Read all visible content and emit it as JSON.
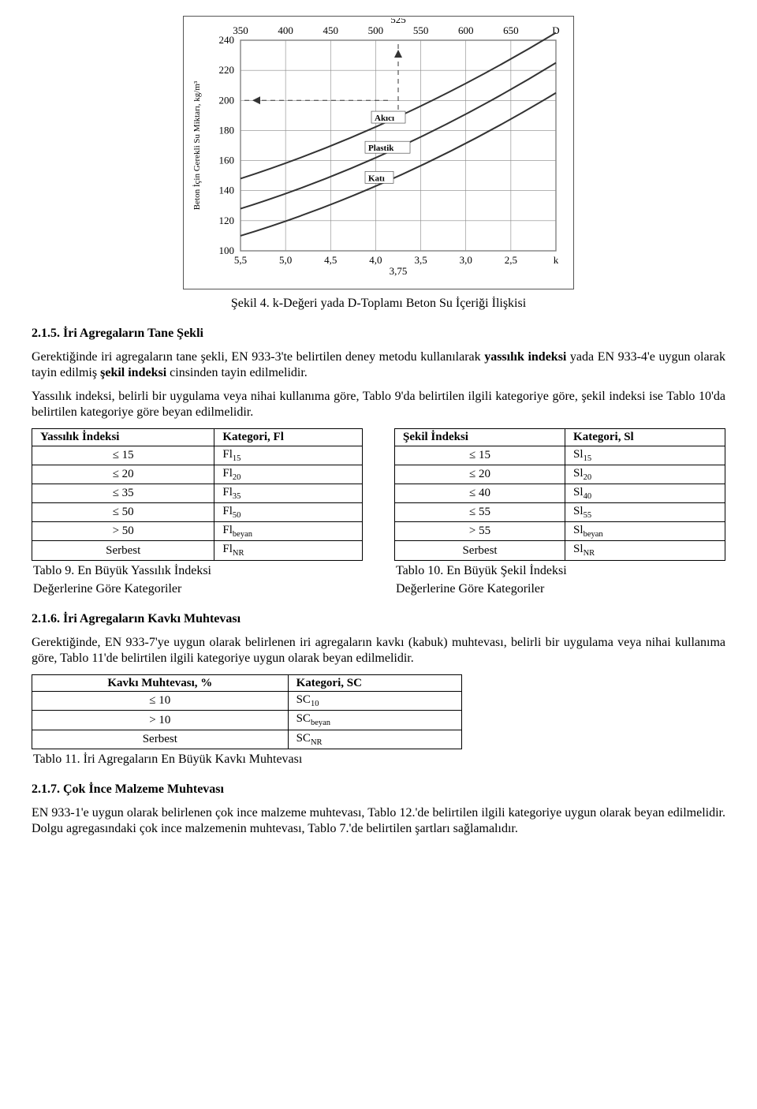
{
  "chart": {
    "top_ticks": [
      "350",
      "400",
      "450",
      "500",
      "550",
      "600",
      "650",
      "D"
    ],
    "top_mid": "525",
    "y_ticks": [
      "240",
      "220",
      "200",
      "180",
      "160",
      "140",
      "120",
      "100"
    ],
    "bottom_ticks": [
      "5,5",
      "5,0",
      "4,5",
      "4,0",
      "3,5",
      "3,0",
      "2,5",
      "k"
    ],
    "bottom_mid": "3,75",
    "y_label": "Beton İçin Gerekli Su Miktarı, kg/m³",
    "labels": {
      "akici": "Akıcı",
      "plastik": "Plastik",
      "kati": "Katı"
    },
    "colors": {
      "border": "#555",
      "grid": "#888",
      "curve": "#333",
      "text": "#000",
      "bg": "#ffffff"
    }
  },
  "sekil4_caption": "Şekil 4. k-Değeri yada D-Toplamı Beton Su İçeriği İlişkisi",
  "h215": "2.1.5. İri Agregaların Tane Şekli",
  "p215a": "Gerektiğinde iri agregaların tane şekli, EN 933-3'te belirtilen deney metodu kullanılarak yassılık indeksi yada EN 933-4'e uygun olarak tayin edilmiş şekil indeksi cinsinden tayin edilmelidir.",
  "p215b": "Yassılık indeksi, belirli bir uygulama veya nihai kullanıma göre, Tablo 9'da belirtilen ilgili kategoriye göre, şekil indeksi ise Tablo 10'da belirtilen kategoriye göre beyan edilmelidir.",
  "t9": {
    "h1": "Yassılık İndeksi",
    "h2": "Kategori, Fl",
    "rows": [
      {
        "a": "≤ 15",
        "b": "Fl",
        "s": "15"
      },
      {
        "a": "≤ 20",
        "b": "Fl",
        "s": "20"
      },
      {
        "a": "≤ 35",
        "b": "Fl",
        "s": "35"
      },
      {
        "a": "≤ 50",
        "b": "Fl",
        "s": "50"
      },
      {
        "a": "> 50",
        "b": "Fl",
        "s": "beyan"
      },
      {
        "a": "Serbest",
        "b": "Fl",
        "s": "NR"
      }
    ],
    "caption_l1": "Tablo 9. En Büyük Yassılık İndeksi",
    "caption_l2": "Değerlerine Göre Kategoriler"
  },
  "t10": {
    "h1": "Şekil İndeksi",
    "h2": "Kategori, Sl",
    "rows": [
      {
        "a": "≤ 15",
        "b": "Sl",
        "s": "15"
      },
      {
        "a": "≤ 20",
        "b": "Sl",
        "s": "20"
      },
      {
        "a": "≤ 40",
        "b": "Sl",
        "s": "40"
      },
      {
        "a": "≤ 55",
        "b": "Sl",
        "s": "55"
      },
      {
        "a": "> 55",
        "b": "Sl",
        "s": "beyan"
      },
      {
        "a": "Serbest",
        "b": "Sl",
        "s": "NR"
      }
    ],
    "caption_l1": "Tablo 10. En Büyük Şekil İndeksi",
    "caption_l2": "Değerlerine Göre Kategoriler"
  },
  "h216": "2.1.6. İri Agregaların Kavkı Muhtevası",
  "p216": "Gerektiğinde, EN 933-7'ye uygun olarak belirlenen iri agregaların kavkı (kabuk) muhtevası, belirli bir uygulama veya nihai kullanıma göre, Tablo 11'de belirtilen ilgili kategoriye uygun olarak beyan edilmelidir.",
  "t11": {
    "h1": "Kavkı Muhtevası, %",
    "h2": "Kategori, SC",
    "rows": [
      {
        "a": "≤ 10",
        "b": "SC",
        "s": "10"
      },
      {
        "a": "> 10",
        "b": "SC",
        "s": "beyan"
      },
      {
        "a": "Serbest",
        "b": "SC",
        "s": "NR"
      }
    ],
    "caption": "Tablo 11. İri Agregaların En Büyük Kavkı Muhtevası"
  },
  "h217": "2.1.7. Çok İnce Malzeme Muhtevası",
  "p217": "EN 933-1'e uygun olarak belirlenen çok ince malzeme muhtevası, Tablo 12.'de belirtilen ilgili kategoriye uygun olarak beyan edilmelidir. Dolgu agregasındaki çok ince malzemenin muhtevası, Tablo 7.'de belirtilen şartları sağlamalıdır."
}
